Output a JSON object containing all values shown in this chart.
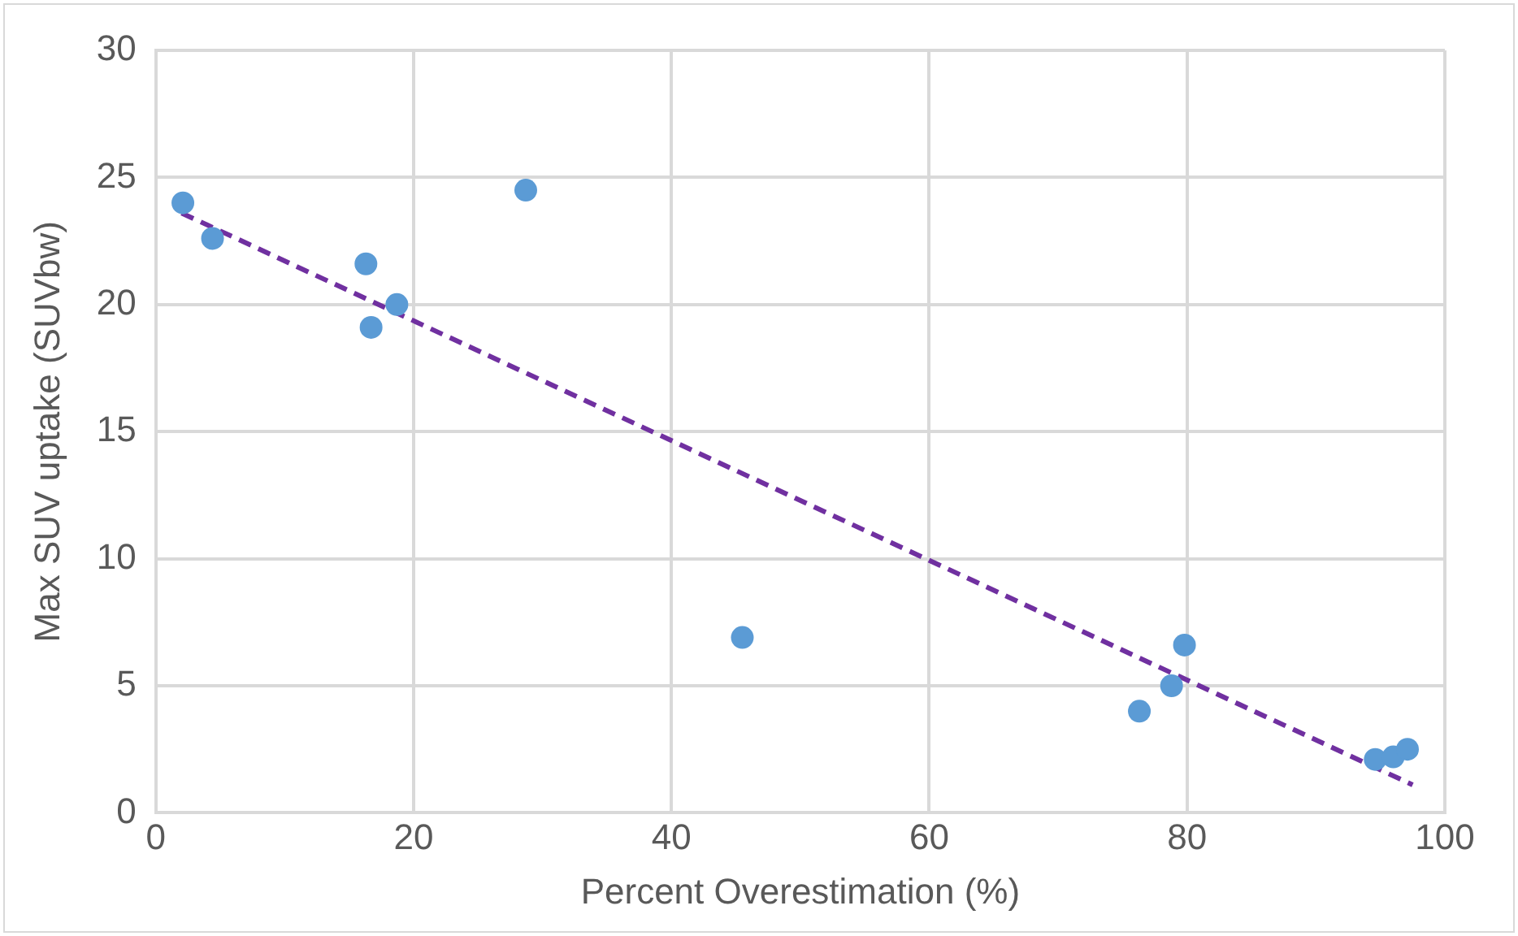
{
  "chart_data": {
    "type": "scatter",
    "xlabel": "Percent Overestimation (%)",
    "ylabel": "Max SUV uptake (SUVbw)",
    "xlim": [
      0,
      100
    ],
    "xticks": [
      0,
      20,
      40,
      60,
      80,
      100
    ],
    "ylim": [
      0,
      30
    ],
    "yticks": [
      0,
      5,
      10,
      15,
      20,
      25,
      30
    ],
    "grid": true,
    "legend": false,
    "marker": "circle",
    "series": [
      {
        "color": "#5b9bd5",
        "x": [
          2.1,
          4.4,
          16.3,
          16.7,
          18.7,
          28.7,
          45.5,
          76.3,
          78.8,
          79.8,
          94.6,
          96.0,
          97.1
        ],
        "values": [
          24.0,
          22.6,
          21.6,
          19.1,
          20.0,
          24.5,
          6.9,
          4.0,
          5.0,
          6.6,
          2.1,
          2.2,
          2.5
        ]
      },
      {
        "type": "line",
        "color": "#7030a0",
        "line_style": "dashed",
        "marker": "none",
        "x": [
          2,
          97.5
        ],
        "values": [
          23.6,
          1.1
        ]
      }
    ]
  }
}
